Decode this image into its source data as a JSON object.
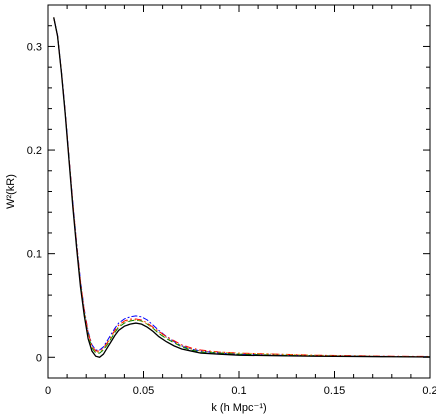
{
  "chart_data": {
    "type": "line",
    "xlabel": "k (h Mpc⁻¹)",
    "ylabel": "W²(kR)",
    "xlim": [
      0,
      0.2
    ],
    "ylim": [
      -0.02,
      0.34
    ],
    "xticks": [
      0,
      0.05,
      0.1,
      0.15,
      0.2
    ],
    "xtick_labels": [
      "0",
      "0.05",
      "0.1",
      "0.15",
      "0.2"
    ],
    "yticks": [
      0,
      0.1,
      0.2,
      0.3
    ],
    "ytick_labels": [
      "0",
      "0.1",
      "0.2",
      "0.3"
    ],
    "grid": false,
    "legend": "none",
    "series": [
      {
        "color": "#000000",
        "dash": "solid",
        "x": [
          0.003,
          0.005,
          0.007,
          0.009,
          0.011,
          0.013,
          0.015,
          0.017,
          0.019,
          0.021,
          0.023,
          0.025,
          0.027,
          0.029,
          0.031,
          0.033,
          0.035,
          0.037,
          0.04,
          0.043,
          0.046,
          0.049,
          0.052,
          0.055,
          0.058,
          0.062,
          0.066,
          0.07,
          0.075,
          0.08,
          0.09,
          0.1,
          0.12,
          0.14,
          0.16,
          0.18,
          0.2
        ],
        "y": [
          0.328,
          0.31,
          0.275,
          0.235,
          0.19,
          0.145,
          0.105,
          0.068,
          0.04,
          0.018,
          0.006,
          0.001,
          0.0,
          0.003,
          0.009,
          0.015,
          0.021,
          0.026,
          0.03,
          0.032,
          0.033,
          0.032,
          0.029,
          0.025,
          0.02,
          0.015,
          0.011,
          0.008,
          0.006,
          0.004,
          0.003,
          0.002,
          0.0015,
          0.001,
          0.0008,
          0.0005,
          0.0003
        ]
      },
      {
        "color": "#0000ff",
        "dash": "dotdash",
        "x": [
          0.003,
          0.005,
          0.007,
          0.009,
          0.011,
          0.013,
          0.015,
          0.017,
          0.019,
          0.021,
          0.023,
          0.025,
          0.027,
          0.029,
          0.031,
          0.033,
          0.035,
          0.037,
          0.04,
          0.043,
          0.046,
          0.049,
          0.052,
          0.055,
          0.058,
          0.062,
          0.066,
          0.07,
          0.075,
          0.08,
          0.09,
          0.1,
          0.12,
          0.14,
          0.16,
          0.18,
          0.2
        ],
        "y": [
          0.328,
          0.311,
          0.277,
          0.238,
          0.194,
          0.15,
          0.11,
          0.074,
          0.046,
          0.025,
          0.012,
          0.007,
          0.007,
          0.01,
          0.016,
          0.022,
          0.028,
          0.033,
          0.037,
          0.039,
          0.04,
          0.039,
          0.036,
          0.031,
          0.026,
          0.02,
          0.015,
          0.011,
          0.008,
          0.006,
          0.004,
          0.003,
          0.002,
          0.0015,
          0.001,
          0.0008,
          0.0005
        ]
      },
      {
        "color": "#008000",
        "dash": "dashed",
        "x": [
          0.003,
          0.005,
          0.007,
          0.009,
          0.011,
          0.013,
          0.015,
          0.017,
          0.019,
          0.021,
          0.023,
          0.025,
          0.027,
          0.029,
          0.031,
          0.033,
          0.035,
          0.037,
          0.04,
          0.043,
          0.046,
          0.049,
          0.052,
          0.055,
          0.058,
          0.062,
          0.066,
          0.07,
          0.075,
          0.08,
          0.09,
          0.1,
          0.12,
          0.14,
          0.16,
          0.18,
          0.2
        ],
        "y": [
          0.328,
          0.31,
          0.276,
          0.236,
          0.192,
          0.147,
          0.107,
          0.071,
          0.043,
          0.022,
          0.009,
          0.004,
          0.004,
          0.007,
          0.012,
          0.018,
          0.024,
          0.029,
          0.033,
          0.035,
          0.036,
          0.035,
          0.032,
          0.028,
          0.023,
          0.018,
          0.014,
          0.01,
          0.007,
          0.005,
          0.004,
          0.003,
          0.002,
          0.0015,
          0.001,
          0.0007,
          0.0005
        ]
      },
      {
        "color": "#ff0000",
        "dash": "dashdot",
        "x": [
          0.003,
          0.005,
          0.007,
          0.009,
          0.011,
          0.013,
          0.015,
          0.017,
          0.019,
          0.021,
          0.023,
          0.025,
          0.027,
          0.029,
          0.031,
          0.033,
          0.035,
          0.037,
          0.04,
          0.043,
          0.046,
          0.049,
          0.052,
          0.055,
          0.058,
          0.062,
          0.066,
          0.07,
          0.075,
          0.08,
          0.09,
          0.1,
          0.12,
          0.14,
          0.16,
          0.18,
          0.2
        ],
        "y": [
          0.328,
          0.31,
          0.276,
          0.237,
          0.193,
          0.149,
          0.109,
          0.073,
          0.045,
          0.024,
          0.011,
          0.006,
          0.006,
          0.009,
          0.014,
          0.02,
          0.026,
          0.031,
          0.035,
          0.037,
          0.037,
          0.036,
          0.033,
          0.029,
          0.025,
          0.02,
          0.016,
          0.012,
          0.009,
          0.007,
          0.005,
          0.004,
          0.003,
          0.002,
          0.0015,
          0.001,
          0.0008
        ]
      },
      {
        "color": "#d4a000",
        "dash": "dotted",
        "x": [
          0.003,
          0.005,
          0.007,
          0.009,
          0.011,
          0.013,
          0.015,
          0.017,
          0.019,
          0.021,
          0.023,
          0.025,
          0.027,
          0.029,
          0.031,
          0.033,
          0.035,
          0.037,
          0.04,
          0.043,
          0.046,
          0.049,
          0.052,
          0.055,
          0.058,
          0.062,
          0.066,
          0.07,
          0.075,
          0.08,
          0.09,
          0.1,
          0.12,
          0.14,
          0.16,
          0.18,
          0.2
        ],
        "y": [
          0.328,
          0.31,
          0.276,
          0.236,
          0.192,
          0.148,
          0.108,
          0.072,
          0.044,
          0.023,
          0.01,
          0.005,
          0.005,
          0.008,
          0.013,
          0.019,
          0.025,
          0.03,
          0.034,
          0.036,
          0.036,
          0.035,
          0.032,
          0.028,
          0.024,
          0.019,
          0.015,
          0.011,
          0.008,
          0.006,
          0.005,
          0.004,
          0.003,
          0.002,
          0.0012,
          0.0008,
          0.0005
        ]
      }
    ]
  }
}
